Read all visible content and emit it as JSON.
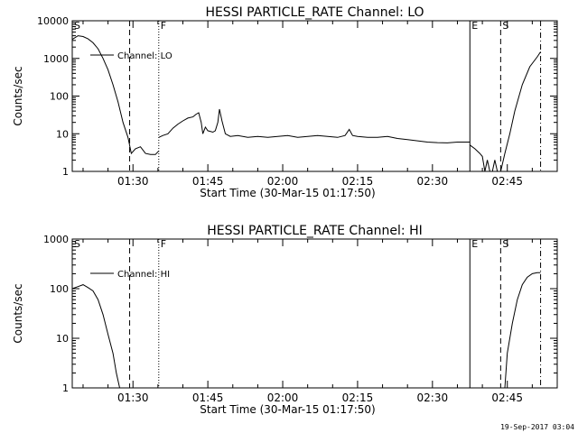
{
  "footer": {
    "date": "19-Sep-2017 03:04"
  },
  "chart_data": [
    {
      "type": "line",
      "title": "HESSI PARTICLE_RATE Channel: LO",
      "xlabel": "Start Time (30-Mar-15 01:17:50)",
      "ylabel": "Counts/sec",
      "yscale": "log",
      "ylim": [
        1,
        10000
      ],
      "xlim": [
        "01:17:50",
        "02:55:00"
      ],
      "xticks": [
        "01:30",
        "01:45",
        "02:00",
        "02:15",
        "02:30",
        "02:45"
      ],
      "yticks": [
        "1",
        "10",
        "100",
        "1000",
        "10000"
      ],
      "legend": {
        "label": "Channel: LO",
        "position": "top-left"
      },
      "markers": [
        {
          "label": "S",
          "time": "01:17:50",
          "style": "solid"
        },
        {
          "label": "",
          "time": "01:29:20",
          "style": "dashed"
        },
        {
          "label": "F",
          "time": "01:35:10",
          "style": "dotted"
        },
        {
          "label": "E",
          "time": "02:37:30",
          "style": "solid"
        },
        {
          "label": "S",
          "time": "02:43:40",
          "style": "dashed"
        },
        {
          "label": "",
          "time": "02:51:40",
          "style": "dashdot"
        }
      ],
      "series": [
        {
          "segments": [
            {
              "x": [
                "01:17:50",
                "01:19:00",
                "01:20:00",
                "01:21:00",
                "01:22:00",
                "01:23:00",
                "01:24:00",
                "01:25:00",
                "01:26:00",
                "01:27:00",
                "01:28:00",
                "01:29:00",
                "01:29:40",
                "01:30:30",
                "01:31:30",
                "01:32:30",
                "01:33:30",
                "01:34:30",
                "01:35:10"
              ],
              "y": [
                3200,
                4000,
                3800,
                3300,
                2600,
                1800,
                1000,
                500,
                200,
                70,
                20,
                8,
                3,
                4,
                4.5,
                3,
                2.8,
                2.8,
                3.5
              ]
            },
            {
              "x": [
                "01:35:10",
                "01:36:00",
                "01:37:00",
                "01:38:00",
                "01:39:00",
                "01:40:00",
                "01:41:00",
                "01:42:00",
                "01:42:40",
                "01:43:10",
                "01:43:40",
                "01:44:00",
                "01:44:30",
                "01:45:00",
                "01:46:00",
                "01:46:30",
                "01:47:00",
                "01:47:20",
                "01:47:50",
                "01:48:30",
                "01:49:30",
                "01:51:00",
                "01:53:00",
                "01:55:00",
                "01:57:00",
                "01:59:00",
                "02:01:00",
                "02:03:00",
                "02:05:00",
                "02:07:00",
                "02:09:00",
                "02:11:00",
                "02:12:30",
                "02:13:20",
                "02:14:00",
                "02:15:00",
                "02:17:00",
                "02:19:00",
                "02:21:00",
                "02:23:00",
                "02:25:00",
                "02:27:00",
                "02:29:00",
                "02:31:00",
                "02:33:00",
                "02:35:00",
                "02:37:30"
              ],
              "y": [
                8,
                9,
                10,
                14,
                18,
                22,
                26,
                28,
                33,
                36,
                20,
                10,
                15,
                12,
                11,
                12,
                20,
                45,
                22,
                10,
                8.5,
                9,
                8,
                8.5,
                8,
                8.5,
                9,
                8,
                8.5,
                9,
                8.5,
                8,
                9,
                13,
                9,
                8.5,
                8,
                8,
                8.5,
                7.5,
                7,
                6.5,
                6,
                5.8,
                5.7,
                6,
                6
              ]
            },
            {
              "x": [
                "02:37:30",
                "02:38:30",
                "02:39:30",
                "02:40:00",
                "02:40:30",
                "02:41:00",
                "02:41:30",
                "02:42:00",
                "02:42:30",
                "02:43:00",
                "02:43:40",
                "02:44:30",
                "02:45:30",
                "02:46:30",
                "02:48:00",
                "02:49:30",
                "02:51:00",
                "02:51:40"
              ],
              "y": [
                5,
                4,
                3,
                2.5,
                1,
                2,
                1,
                1,
                2,
                1,
                1,
                3,
                10,
                40,
                200,
                600,
                1100,
                1500
              ]
            }
          ]
        }
      ]
    },
    {
      "type": "line",
      "title": "HESSI PARTICLE_RATE Channel: HI",
      "xlabel": "Start Time (30-Mar-15 01:17:50)",
      "ylabel": "Counts/sec",
      "yscale": "log",
      "ylim": [
        1,
        1000
      ],
      "xlim": [
        "01:17:50",
        "02:55:00"
      ],
      "xticks": [
        "01:30",
        "01:45",
        "02:00",
        "02:15",
        "02:30",
        "02:45"
      ],
      "yticks": [
        "1",
        "10",
        "100",
        "1000"
      ],
      "legend": {
        "label": "Channel: HI",
        "position": "top-left"
      },
      "markers": [
        {
          "label": "S",
          "time": "01:17:50",
          "style": "solid"
        },
        {
          "label": "",
          "time": "01:29:20",
          "style": "dashed"
        },
        {
          "label": "F",
          "time": "01:35:10",
          "style": "dotted"
        },
        {
          "label": "E",
          "time": "02:37:30",
          "style": "solid"
        },
        {
          "label": "S",
          "time": "02:43:40",
          "style": "dashed"
        },
        {
          "label": "",
          "time": "02:51:40",
          "style": "dashdot"
        }
      ],
      "series": [
        {
          "segments": [
            {
              "x": [
                "01:17:50",
                "01:19:00",
                "01:20:00",
                "01:21:00",
                "01:22:00",
                "01:23:00",
                "01:24:00",
                "01:25:00",
                "01:26:00",
                "01:26:40",
                "01:27:20"
              ],
              "y": [
                100,
                110,
                120,
                105,
                90,
                60,
                30,
                12,
                5,
                2,
                1
              ]
            },
            {
              "x": [
                "02:44:30",
                "02:45:00",
                "02:46:00",
                "02:47:00",
                "02:48:00",
                "02:49:00",
                "02:50:00",
                "02:51:00",
                "02:51:40"
              ],
              "y": [
                1,
                5,
                20,
                60,
                120,
                170,
                200,
                210,
                210
              ]
            }
          ]
        }
      ]
    }
  ]
}
